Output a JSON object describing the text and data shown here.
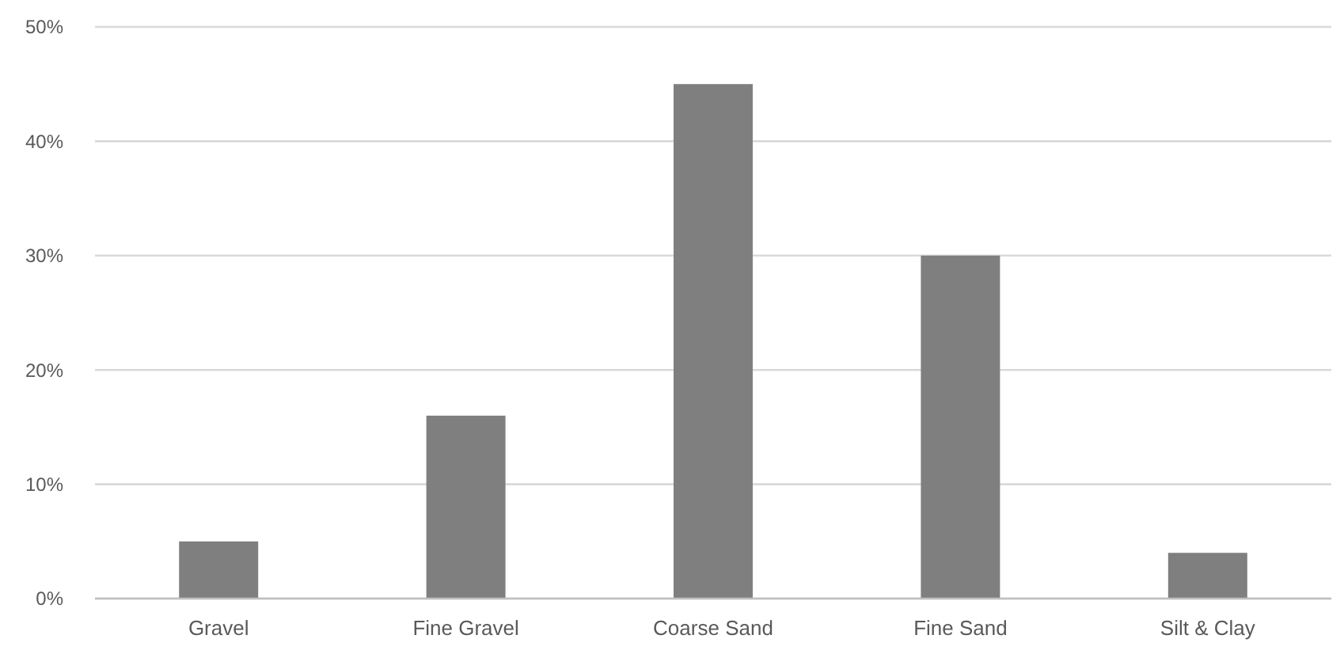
{
  "chart_data": {
    "type": "bar",
    "categories": [
      "Gravel",
      "Fine Gravel",
      "Coarse Sand",
      "Fine Sand",
      "Silt & Clay"
    ],
    "values": [
      5,
      16,
      45,
      30,
      4
    ],
    "color": "#7f7f7f",
    "ylim": [
      0,
      50
    ],
    "yticks": [
      {
        "value": 0,
        "label": "0%"
      },
      {
        "value": 10,
        "label": "10%"
      },
      {
        "value": 20,
        "label": "20%"
      },
      {
        "value": 30,
        "label": "30%"
      },
      {
        "value": 40,
        "label": "40%"
      },
      {
        "value": 50,
        "label": "50%"
      }
    ],
    "grid": "y"
  }
}
